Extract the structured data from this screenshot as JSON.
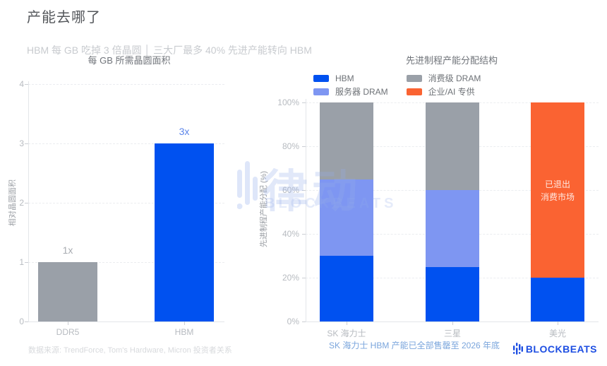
{
  "header": {
    "title": "产能去哪了",
    "subtitle": "HBM 每 GB 吃掉 3 倍晶圆 │ 三大厂最多 40% 先进产能转向 HBM"
  },
  "watermark": {
    "cn": "律动",
    "en": "BLOCKBEATS"
  },
  "logo": {
    "text": "BLOCKBEATS"
  },
  "footers": {
    "left_source": "数据来源: TrendForce, Tom's Hardware, Micron 投资者关系",
    "right_note": "SK 海力士 HBM 产能已全部售罄至 2026 年底"
  },
  "colors": {
    "hbm_blue": "#0051f0",
    "server_dram_blue": "#7e96f2",
    "consumer_dram_gray": "#9aa0a8",
    "enterprise_orange": "#fa6332",
    "note_blue": "#7aa5dc",
    "logo_blue": "#1d4ee2"
  },
  "chart_data": [
    {
      "type": "bar",
      "title": "每 GB 所需晶圆面积",
      "ylabel": "相对晶圆面积",
      "categories": [
        "DDR5",
        "HBM"
      ],
      "values": [
        1,
        3
      ],
      "bar_labels": [
        "1x",
        "3x"
      ],
      "bar_colors": [
        "#9aa0a8",
        "#0051f0"
      ],
      "label_colors": [
        "#a8acb1",
        "#5c85ea"
      ],
      "ylim": [
        0,
        4
      ],
      "yticks": [
        0,
        1,
        2,
        3,
        4
      ],
      "grid": true,
      "legend_position": "none"
    },
    {
      "type": "bar",
      "stacked": true,
      "title": "先进制程产能分配结构",
      "ylabel": "先进制程产能分配 (%)",
      "categories": [
        "SK 海力士",
        "三星",
        "美光"
      ],
      "series": [
        {
          "name": "HBM",
          "color": "#0051f0",
          "values": [
            30,
            25,
            20
          ]
        },
        {
          "name": "服务器 DRAM",
          "color": "#7e96f2",
          "values": [
            35,
            35,
            0
          ]
        },
        {
          "name": "消费级 DRAM",
          "color": "#9aa0a8",
          "values": [
            35,
            40,
            0
          ]
        },
        {
          "name": "企业/AI 专供",
          "color": "#fa6332",
          "values": [
            0,
            0,
            80
          ]
        }
      ],
      "ylim": [
        0,
        100
      ],
      "yticks": [
        "0%",
        "20%",
        "40%",
        "60%",
        "80%",
        "100%"
      ],
      "ytick_values": [
        0,
        20,
        40,
        60,
        80,
        100
      ],
      "grid": true,
      "legend_position": "upper left",
      "annotation": {
        "text": "已退出 消费市场",
        "bar": "美光",
        "lines": [
          "已退出",
          "消费市场"
        ]
      }
    }
  ]
}
